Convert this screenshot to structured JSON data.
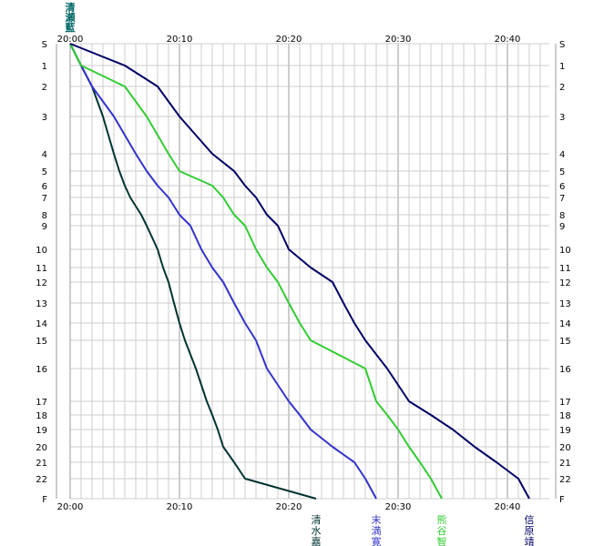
{
  "chart_data": {
    "type": "line",
    "xlabel": "",
    "ylabel": "",
    "x_ticks": [
      "20:00",
      "20:10",
      "20:20",
      "20:30",
      "20:40"
    ],
    "xlim_minutes_after_20_00": [
      0,
      43
    ],
    "stations": [
      "S",
      "1",
      "2",
      "3",
      "4",
      "5",
      "6",
      "7",
      "8",
      "9",
      "10",
      "11",
      "12",
      "13",
      "14",
      "15",
      "16",
      "17",
      "18",
      "19",
      "20",
      "21",
      "22",
      "F"
    ],
    "grid": true,
    "start_label": "清瀬藍",
    "series": [
      {
        "name": "清水嘉",
        "color": "#003333",
        "points": [
          [
            "S",
            "20:00"
          ],
          [
            "1",
            "20:01"
          ],
          [
            "2",
            "20:02"
          ],
          [
            "3",
            "20:03"
          ],
          [
            "4",
            "20:04"
          ],
          [
            "5",
            "20:04:30"
          ],
          [
            "6",
            "20:05"
          ],
          [
            "7",
            "20:05:30"
          ],
          [
            "8",
            "20:06:30"
          ],
          [
            "9",
            "20:07"
          ],
          [
            "10",
            "20:08"
          ],
          [
            "11",
            "20:08:30"
          ],
          [
            "12",
            "20:09"
          ],
          [
            "13",
            "20:09:30"
          ],
          [
            "14",
            "20:10"
          ],
          [
            "15",
            "20:10:30"
          ],
          [
            "16",
            "20:11:30"
          ],
          [
            "17",
            "20:12:30"
          ],
          [
            "18",
            "20:13"
          ],
          [
            "19",
            "20:13:30"
          ],
          [
            "20",
            "20:14"
          ],
          [
            "21",
            "20:15"
          ],
          [
            "22",
            "20:16"
          ],
          [
            "F",
            "20:22:30"
          ]
        ]
      },
      {
        "name": "末満寛",
        "color": "#3333cc",
        "points": [
          [
            "S",
            "20:00"
          ],
          [
            "1",
            "20:01"
          ],
          [
            "2",
            "20:02"
          ],
          [
            "3",
            "20:04"
          ],
          [
            "4",
            "20:06"
          ],
          [
            "5",
            "20:07"
          ],
          [
            "6",
            "20:08"
          ],
          [
            "7",
            "20:09"
          ],
          [
            "8",
            "20:10"
          ],
          [
            "9",
            "20:11"
          ],
          [
            "10",
            "20:12"
          ],
          [
            "11",
            "20:13"
          ],
          [
            "12",
            "20:14"
          ],
          [
            "13",
            "20:15"
          ],
          [
            "14",
            "20:16"
          ],
          [
            "15",
            "20:17"
          ],
          [
            "16",
            "20:18"
          ],
          [
            "17",
            "20:20"
          ],
          [
            "18",
            "20:21"
          ],
          [
            "19",
            "20:22"
          ],
          [
            "20",
            "20:24"
          ],
          [
            "21",
            "20:26"
          ],
          [
            "22",
            "20:27"
          ],
          [
            "F",
            "20:28"
          ]
        ]
      },
      {
        "name": "熊谷智",
        "color": "#33cc33",
        "points": [
          [
            "S",
            "20:00"
          ],
          [
            "1",
            "20:01"
          ],
          [
            "2",
            "20:05"
          ],
          [
            "3",
            "20:07"
          ],
          [
            "4",
            "20:09"
          ],
          [
            "5",
            "20:10"
          ],
          [
            "6",
            "20:13"
          ],
          [
            "7",
            "20:14"
          ],
          [
            "8",
            "20:15"
          ],
          [
            "9",
            "20:16"
          ],
          [
            "10",
            "20:17"
          ],
          [
            "11",
            "20:18"
          ],
          [
            "12",
            "20:19"
          ],
          [
            "13",
            "20:20"
          ],
          [
            "14",
            "20:21"
          ],
          [
            "15",
            "20:22"
          ],
          [
            "16",
            "20:27"
          ],
          [
            "17",
            "20:28"
          ],
          [
            "18",
            "20:29"
          ],
          [
            "19",
            "20:30"
          ],
          [
            "20",
            "20:31"
          ],
          [
            "21",
            "20:32"
          ],
          [
            "22",
            "20:33"
          ],
          [
            "F",
            "20:34"
          ]
        ]
      },
      {
        "name": "信原靖",
        "color": "#000066",
        "points": [
          [
            "S",
            "20:00"
          ],
          [
            "1",
            "20:05"
          ],
          [
            "2",
            "20:08"
          ],
          [
            "3",
            "20:10"
          ],
          [
            "4",
            "20:13"
          ],
          [
            "5",
            "20:15"
          ],
          [
            "6",
            "20:16"
          ],
          [
            "7",
            "20:17"
          ],
          [
            "8",
            "20:18"
          ],
          [
            "9",
            "20:19"
          ],
          [
            "10",
            "20:20"
          ],
          [
            "11",
            "20:22"
          ],
          [
            "12",
            "20:24"
          ],
          [
            "13",
            "20:25"
          ],
          [
            "14",
            "20:26"
          ],
          [
            "15",
            "20:27"
          ],
          [
            "16",
            "20:29"
          ],
          [
            "17",
            "20:31"
          ],
          [
            "18",
            "20:33"
          ],
          [
            "19",
            "20:35"
          ],
          [
            "20",
            "20:37"
          ],
          [
            "21",
            "20:39"
          ],
          [
            "22",
            "20:41"
          ],
          [
            "F",
            "20:42"
          ]
        ]
      }
    ]
  }
}
